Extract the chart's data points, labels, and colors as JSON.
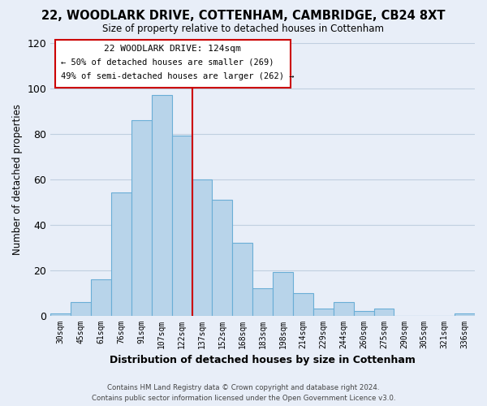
{
  "title": "22, WOODLARK DRIVE, COTTENHAM, CAMBRIDGE, CB24 8XT",
  "subtitle": "Size of property relative to detached houses in Cottenham",
  "xlabel": "Distribution of detached houses by size in Cottenham",
  "ylabel": "Number of detached properties",
  "bar_labels": [
    "30sqm",
    "45sqm",
    "61sqm",
    "76sqm",
    "91sqm",
    "107sqm",
    "122sqm",
    "137sqm",
    "152sqm",
    "168sqm",
    "183sqm",
    "198sqm",
    "214sqm",
    "229sqm",
    "244sqm",
    "260sqm",
    "275sqm",
    "290sqm",
    "305sqm",
    "321sqm",
    "336sqm"
  ],
  "bar_heights": [
    1,
    6,
    16,
    54,
    86,
    97,
    79,
    60,
    51,
    32,
    12,
    19,
    10,
    3,
    6,
    2,
    3,
    0,
    0,
    0,
    1
  ],
  "bar_color": "#b8d4ea",
  "bar_edge_color": "#6aaed6",
  "vline_color": "#cc0000",
  "ylim": [
    0,
    120
  ],
  "yticks": [
    0,
    20,
    40,
    60,
    80,
    100,
    120
  ],
  "annotation_title": "22 WOODLARK DRIVE: 124sqm",
  "annotation_line1": "← 50% of detached houses are smaller (269)",
  "annotation_line2": "49% of semi-detached houses are larger (262) →",
  "annotation_box_color": "#ffffff",
  "annotation_box_edge": "#cc0000",
  "footer_line1": "Contains HM Land Registry data © Crown copyright and database right 2024.",
  "footer_line2": "Contains public sector information licensed under the Open Government Licence v3.0.",
  "bg_color": "#e8eef8",
  "plot_bg_color": "#e8eef8",
  "grid_color": "#c0cfe0"
}
